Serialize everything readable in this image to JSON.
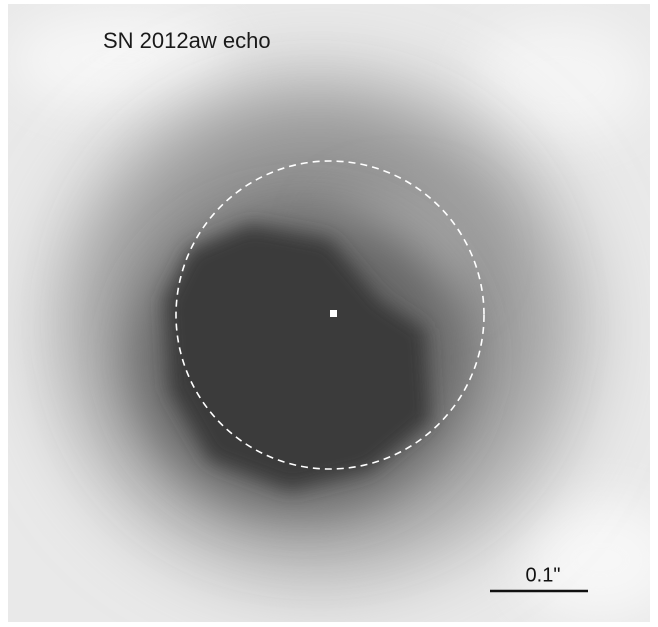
{
  "label": "SN 2012aw echo",
  "scale_bar": {
    "label": "0.1\""
  }
}
